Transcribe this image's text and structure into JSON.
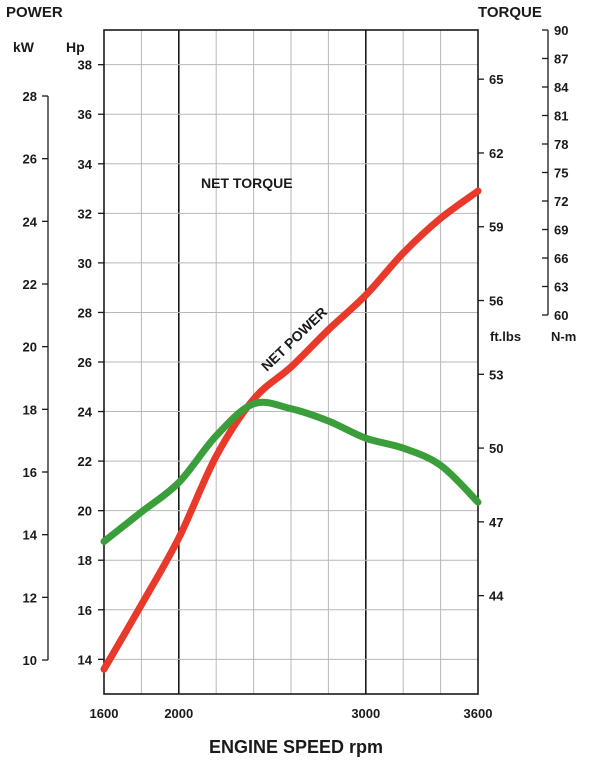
{
  "chart_data": {
    "type": "line",
    "header_left": "POWER",
    "header_right": "TORQUE",
    "xlabel": "ENGINE SPEED rpm",
    "x_ticks": [
      1600,
      2000,
      3000,
      3600
    ],
    "xlim": [
      1600,
      3600
    ],
    "axes": {
      "kw": {
        "label": "kW",
        "range": [
          10,
          28
        ],
        "ticks": [
          10,
          12,
          14,
          16,
          18,
          20,
          22,
          24,
          26,
          28
        ]
      },
      "hp": {
        "label": "Hp",
        "range": [
          12.6,
          39.4
        ],
        "ticks": [
          14,
          16,
          18,
          20,
          22,
          24,
          26,
          28,
          30,
          32,
          34,
          36,
          38
        ]
      },
      "ftlbs": {
        "label": "ft.lbs",
        "range": [
          40,
          67
        ],
        "ticks": [
          44,
          47,
          50,
          53,
          56,
          59,
          62,
          65
        ]
      },
      "nm": {
        "label": "N-m",
        "range": [
          60,
          90
        ],
        "ticks": [
          60,
          63,
          66,
          69,
          72,
          75,
          78,
          81,
          84,
          87,
          90
        ]
      }
    },
    "series": [
      {
        "name": "NET POWER",
        "color": "#e8392a",
        "axis": "hp",
        "points": [
          [
            1600,
            13.6
          ],
          [
            1800,
            16.2
          ],
          [
            2000,
            18.9
          ],
          [
            2200,
            22.2
          ],
          [
            2400,
            24.5
          ],
          [
            2600,
            25.8
          ],
          [
            2800,
            27.3
          ],
          [
            3000,
            28.7
          ],
          [
            3200,
            30.4
          ],
          [
            3400,
            31.8
          ],
          [
            3600,
            32.9
          ]
        ]
      },
      {
        "name": "NET TORQUE",
        "color": "#3a9e3a",
        "axis": "ftlbs",
        "points": [
          [
            1600,
            46.2
          ],
          [
            1800,
            47.4
          ],
          [
            2000,
            48.6
          ],
          [
            2200,
            50.5
          ],
          [
            2400,
            51.8
          ],
          [
            2600,
            51.6
          ],
          [
            2800,
            51.1
          ],
          [
            3000,
            50.4
          ],
          [
            3200,
            50.0
          ],
          [
            3400,
            49.3
          ],
          [
            3600,
            47.8
          ]
        ]
      }
    ]
  }
}
